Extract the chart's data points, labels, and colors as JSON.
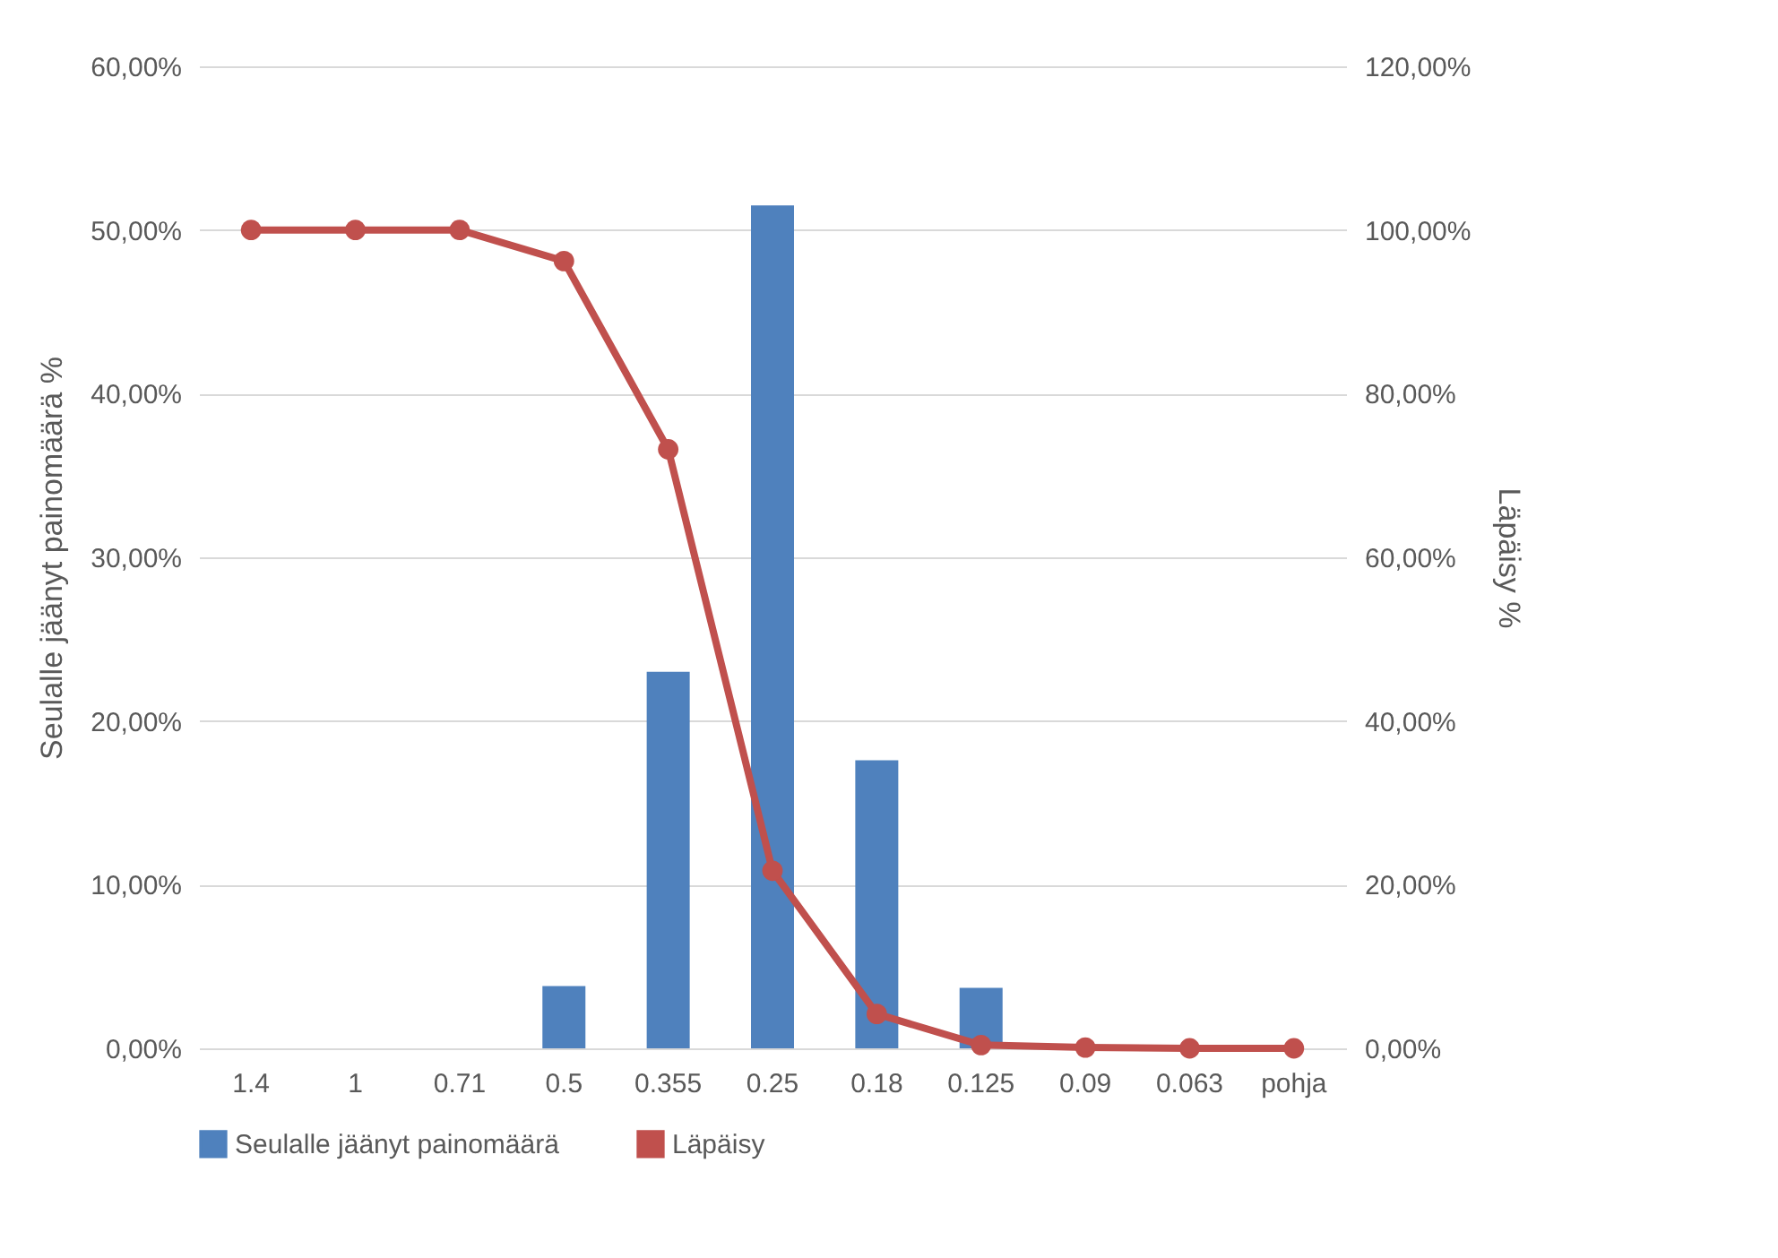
{
  "chart_data": {
    "type": "bar",
    "ylabel": "Seulalle jäänyt painomäärä %",
    "y2label": "Läpäisy %",
    "categories": [
      "1.4",
      "1",
      "0.71",
      "0.5",
      "0.355",
      "0.25",
      "0.18",
      "0.125",
      "0.09",
      "0.063",
      "pohja"
    ],
    "series": [
      {
        "name": "Seulalle jäänyt painomäärä",
        "color": "#4f81bd",
        "values": [
          0,
          0,
          0,
          3.8,
          23.0,
          51.5,
          17.6,
          3.7,
          null,
          0,
          0
        ]
      },
      {
        "name": "Läpäisy",
        "type": "line",
        "axis": "y2",
        "color": "#c0504d",
        "marker": "circle",
        "line_style": "solid",
        "values": [
          100,
          100,
          100,
          96.2,
          73.2,
          21.7,
          4.2,
          0.4,
          0.1,
          0,
          0
        ]
      }
    ],
    "ylim": [
      0,
      60
    ],
    "yticks": [
      {
        "value": 0,
        "label": "0,00%"
      },
      {
        "value": 10,
        "label": "10,00%"
      },
      {
        "value": 20,
        "label": "20,00%"
      },
      {
        "value": 30,
        "label": "30,00%"
      },
      {
        "value": 40,
        "label": "40,00%"
      },
      {
        "value": 50,
        "label": "50,00%"
      },
      {
        "value": 60,
        "label": "60,00%"
      }
    ],
    "y2lim": [
      0,
      120
    ],
    "y2ticks": [
      {
        "value": 0,
        "label": "0,00%"
      },
      {
        "value": 20,
        "label": "20,00%"
      },
      {
        "value": 40,
        "label": "40,00%"
      },
      {
        "value": 60,
        "label": "60,00%"
      },
      {
        "value": 80,
        "label": "80,00%"
      },
      {
        "value": 100,
        "label": "100,00%"
      },
      {
        "value": 120,
        "label": "120,00%"
      }
    ],
    "grid": "y",
    "legend": "bottom"
  }
}
